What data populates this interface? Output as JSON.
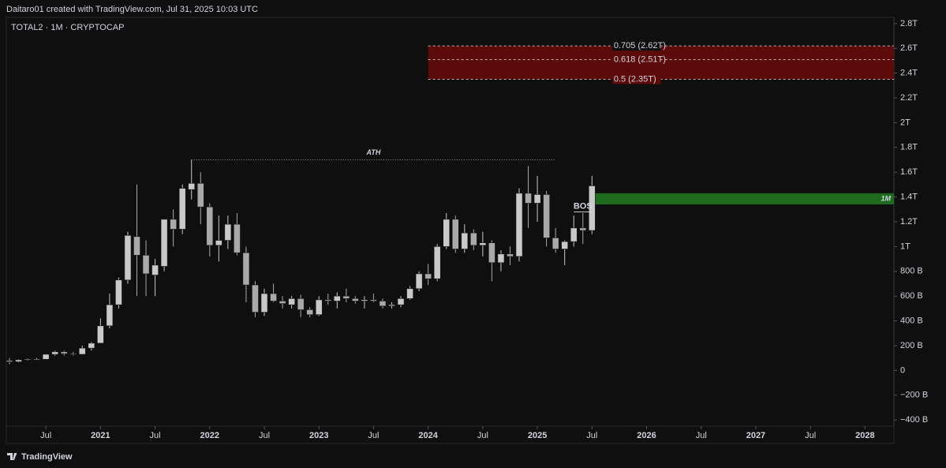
{
  "chart_data": {
    "type": "candlestick",
    "header": "Daitaro01 created with TradingView.com, Jul 31, 2025 10:03 UTC",
    "symbol": "TOTAL2 · 1M · CRYPTOCAP",
    "footer": "TradingView",
    "up_color": "#c9c9c9",
    "down_color": "#a9a9a9",
    "grid": false,
    "xlim": [
      "2020-03",
      "2028-04"
    ],
    "ylim": [
      -0.45,
      2.85
    ],
    "xticks": [
      {
        "value": "2020-07",
        "label": "Jul"
      },
      {
        "value": "2021-01",
        "label": "2021"
      },
      {
        "value": "2021-07",
        "label": "Jul"
      },
      {
        "value": "2022-01",
        "label": "2022"
      },
      {
        "value": "2022-07",
        "label": "Jul"
      },
      {
        "value": "2023-01",
        "label": "2023"
      },
      {
        "value": "2023-07",
        "label": "Jul"
      },
      {
        "value": "2024-01",
        "label": "2024"
      },
      {
        "value": "2024-07",
        "label": "Jul"
      },
      {
        "value": "2025-01",
        "label": "2025"
      },
      {
        "value": "2025-07",
        "label": "Jul"
      },
      {
        "value": "2026-01",
        "label": "2026"
      },
      {
        "value": "2026-07",
        "label": "Jul"
      },
      {
        "value": "2027-01",
        "label": "2027"
      },
      {
        "value": "2027-07",
        "label": "Jul"
      },
      {
        "value": "2028-01",
        "label": "2028"
      }
    ],
    "yticks": [
      {
        "value": 2.8,
        "label": "2.8T"
      },
      {
        "value": 2.6,
        "label": "2.6T"
      },
      {
        "value": 2.4,
        "label": "2.4T"
      },
      {
        "value": 2.2,
        "label": "2.2T"
      },
      {
        "value": 2.0,
        "label": "2T"
      },
      {
        "value": 1.8,
        "label": "1.8T"
      },
      {
        "value": 1.6,
        "label": "1.6T"
      },
      {
        "value": 1.4,
        "label": "1.4T"
      },
      {
        "value": 1.2,
        "label": "1.2T"
      },
      {
        "value": 1.0,
        "label": "1T"
      },
      {
        "value": 0.8,
        "label": "800 B"
      },
      {
        "value": 0.6,
        "label": "600 B"
      },
      {
        "value": 0.4,
        "label": "400 B"
      },
      {
        "value": 0.2,
        "label": "200 B"
      },
      0,
      {
        "value": -0.2,
        "label": "−200 B"
      },
      {
        "value": -0.4,
        "label": "−400 B"
      }
    ],
    "x": [
      "2020-03",
      "2020-04",
      "2020-05",
      "2020-06",
      "2020-07",
      "2020-08",
      "2020-09",
      "2020-10",
      "2020-11",
      "2020-12",
      "2021-01",
      "2021-02",
      "2021-03",
      "2021-04",
      "2021-05",
      "2021-06",
      "2021-07",
      "2021-08",
      "2021-09",
      "2021-10",
      "2021-11",
      "2021-12",
      "2022-01",
      "2022-02",
      "2022-03",
      "2022-04",
      "2022-05",
      "2022-06",
      "2022-07",
      "2022-08",
      "2022-09",
      "2022-10",
      "2022-11",
      "2022-12",
      "2023-01",
      "2023-02",
      "2023-03",
      "2023-04",
      "2023-05",
      "2023-06",
      "2023-07",
      "2023-08",
      "2023-09",
      "2023-10",
      "2023-11",
      "2023-12",
      "2024-01",
      "2024-02",
      "2024-03",
      "2024-04",
      "2024-05",
      "2024-06",
      "2024-07",
      "2024-08",
      "2024-09",
      "2024-10",
      "2024-11",
      "2024-12",
      "2025-01",
      "2025-02",
      "2025-03",
      "2025-04",
      "2025-05",
      "2025-06",
      "2025-07"
    ],
    "open": [
      0.08,
      0.07,
      0.085,
      0.09,
      0.09,
      0.13,
      0.15,
      0.135,
      0.13,
      0.18,
      0.22,
      0.36,
      0.53,
      0.73,
      1.08,
      0.93,
      0.77,
      0.84,
      1.22,
      1.14,
      1.46,
      1.51,
      1.32,
      1.01,
      1.05,
      1.18,
      0.95,
      0.69,
      0.47,
      0.62,
      0.56,
      0.53,
      0.58,
      0.49,
      0.45,
      0.57,
      0.56,
      0.6,
      0.58,
      0.56,
      0.57,
      0.56,
      0.52,
      0.53,
      0.58,
      0.66,
      0.78,
      0.74,
      1.0,
      1.22,
      0.98,
      1.11,
      1.01,
      1.03,
      0.87,
      0.94,
      0.92,
      1.43,
      1.35,
      1.42,
      1.07,
      0.98,
      1.04,
      1.15,
      1.13
    ],
    "high": [
      0.1,
      0.09,
      0.095,
      0.1,
      0.13,
      0.16,
      0.16,
      0.15,
      0.2,
      0.23,
      0.42,
      0.62,
      0.75,
      1.12,
      1.5,
      1.05,
      0.9,
      1.22,
      1.3,
      1.5,
      1.7,
      1.6,
      1.35,
      1.25,
      1.25,
      1.27,
      1.0,
      0.72,
      0.66,
      0.7,
      0.6,
      0.6,
      0.61,
      0.51,
      0.6,
      0.62,
      0.63,
      0.66,
      0.6,
      0.6,
      0.62,
      0.58,
      0.55,
      0.6,
      0.68,
      0.8,
      0.86,
      1.02,
      1.27,
      1.25,
      1.18,
      1.14,
      1.12,
      1.05,
      0.97,
      1.0,
      1.47,
      1.65,
      1.57,
      1.45,
      1.15,
      1.05,
      1.25,
      1.27,
      1.57
    ],
    "low": [
      0.05,
      0.065,
      0.08,
      0.085,
      0.09,
      0.12,
      0.12,
      0.12,
      0.13,
      0.16,
      0.22,
      0.34,
      0.5,
      0.7,
      0.6,
      0.6,
      0.6,
      0.8,
      1.0,
      1.1,
      1.38,
      1.18,
      0.92,
      0.88,
      0.98,
      0.93,
      0.55,
      0.43,
      0.44,
      0.55,
      0.5,
      0.5,
      0.43,
      0.43,
      0.44,
      0.53,
      0.5,
      0.55,
      0.54,
      0.5,
      0.55,
      0.5,
      0.5,
      0.51,
      0.57,
      0.64,
      0.69,
      0.72,
      0.98,
      0.95,
      0.95,
      0.97,
      0.92,
      0.72,
      0.8,
      0.85,
      0.88,
      1.15,
      1.2,
      1.0,
      0.95,
      0.85,
      1.0,
      1.02,
      1.1
    ],
    "close": [
      0.07,
      0.085,
      0.09,
      0.09,
      0.13,
      0.15,
      0.135,
      0.13,
      0.18,
      0.22,
      0.36,
      0.53,
      0.73,
      1.09,
      0.93,
      0.78,
      0.85,
      1.22,
      1.14,
      1.47,
      1.51,
      1.32,
      1.01,
      1.05,
      1.18,
      0.95,
      0.69,
      0.47,
      0.62,
      0.56,
      0.54,
      0.58,
      0.49,
      0.45,
      0.57,
      0.56,
      0.6,
      0.58,
      0.56,
      0.57,
      0.56,
      0.52,
      0.53,
      0.58,
      0.66,
      0.78,
      0.74,
      1.0,
      1.22,
      0.98,
      1.11,
      1.01,
      1.03,
      0.87,
      0.94,
      0.92,
      1.43,
      1.35,
      1.42,
      1.07,
      0.98,
      1.04,
      1.15,
      1.13,
      1.49
    ],
    "fib_zone": {
      "from": "2024-01",
      "color": "#5c0b0b",
      "levels": [
        {
          "label": "0.705 (2.62T)",
          "value": 2.62
        },
        {
          "label": "0.618 (2.51T)",
          "value": 2.51
        },
        {
          "label": "0.5 (2.35T)",
          "value": 2.35
        }
      ]
    },
    "ath": {
      "label": "ATH",
      "value": 1.7,
      "from": "2021-11",
      "to": "2025-03"
    },
    "zone_1m": {
      "label": "1M",
      "low": 1.34,
      "high": 1.43,
      "from": "2025-07",
      "color": "#1e6b1e"
    },
    "bos": {
      "label": "BOS",
      "value": 1.28,
      "from": "2025-05",
      "to": "2025-07"
    }
  }
}
